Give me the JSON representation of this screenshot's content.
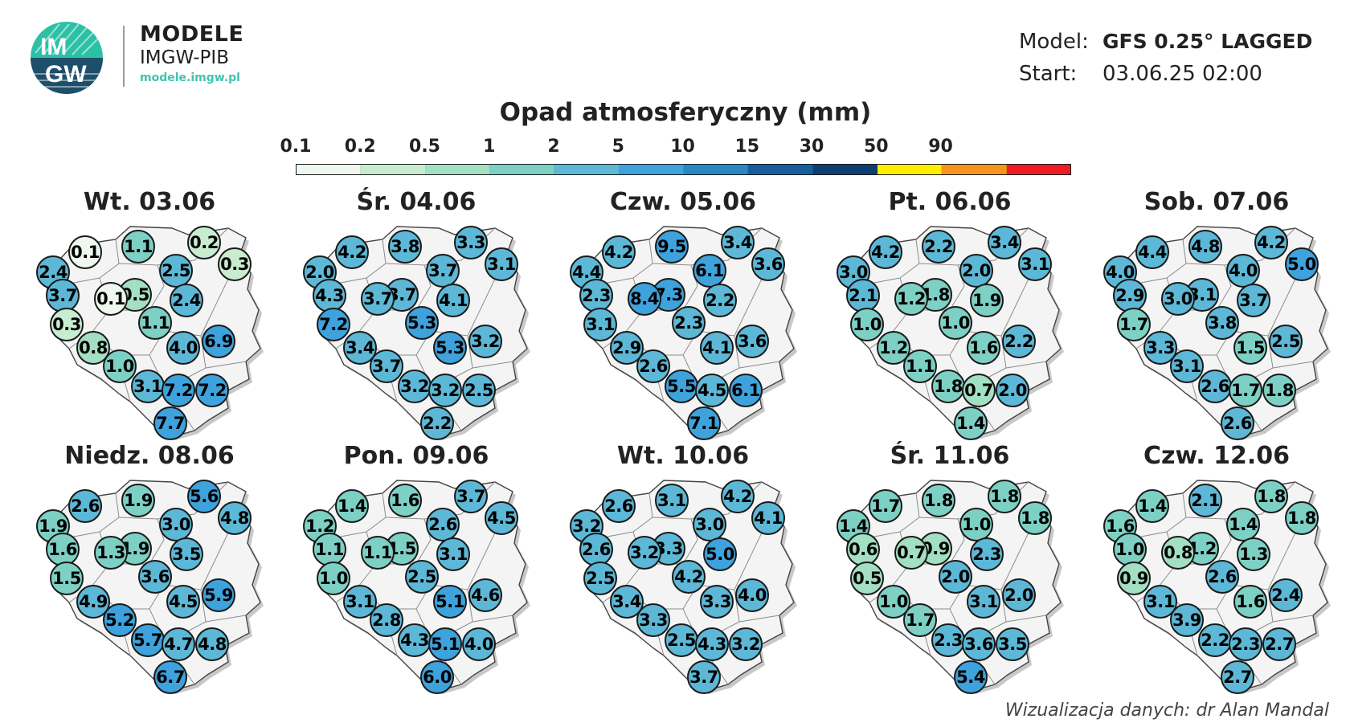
{
  "header": {
    "logo_text_top": "IM",
    "logo_text_bottom": "GW",
    "brand_title": "MODELE",
    "brand_sub": "IMGW-PIB",
    "brand_url": "modele.imgw.pl",
    "model_key": "Model:",
    "model_value": "GFS 0.25° LAGGED",
    "start_key": "Start:",
    "start_value": "03.06.25  02:00"
  },
  "title": "Opad atmosferyczny (mm)",
  "legend": {
    "labels": [
      "0.1",
      "0.2",
      "0.5",
      "1",
      "2",
      "5",
      "10",
      "15",
      "30",
      "50",
      "90"
    ],
    "colors": [
      "#eef8ee",
      "#c8ecd0",
      "#a3dfc2",
      "#7dd0c4",
      "#5cb8d6",
      "#3ea2dc",
      "#2b86c6",
      "#155f9e",
      "#0e3f73",
      "#ffee00",
      "#f7941d",
      "#ee1b24"
    ]
  },
  "days": [
    {
      "title": "Wt. 03.06",
      "values": [
        "0.1",
        "1.1",
        "0.2",
        "2.4",
        "2.5",
        "0.3",
        "3.7",
        "0.5",
        "0.1",
        "2.4",
        "0.3",
        "1.1",
        "0.8",
        "4.0",
        "6.9",
        "1.0",
        "3.1",
        "7.2",
        "7.2",
        "7.7"
      ]
    },
    {
      "title": "Śr. 04.06",
      "values": [
        "4.2",
        "3.8",
        "3.3",
        "2.0",
        "3.7",
        "3.1",
        "4.3",
        "3.7",
        "3.7",
        "4.1",
        "7.2",
        "5.3",
        "3.4",
        "5.3",
        "3.2",
        "3.7",
        "3.2",
        "3.2",
        "2.5",
        "2.2"
      ]
    },
    {
      "title": "Czw. 05.06",
      "values": [
        "4.2",
        "9.5",
        "3.4",
        "4.4",
        "6.1",
        "3.6",
        "2.3",
        "7.3",
        "8.4",
        "2.2",
        "3.1",
        "2.3",
        "2.9",
        "4.1",
        "3.6",
        "2.6",
        "5.5",
        "4.5",
        "6.1",
        "7.1"
      ]
    },
    {
      "title": "Pt. 06.06",
      "values": [
        "4.2",
        "2.2",
        "3.4",
        "3.0",
        "2.0",
        "3.1",
        "2.1",
        "1.8",
        "1.2",
        "1.9",
        "1.0",
        "1.0",
        "1.2",
        "1.6",
        "2.2",
        "1.1",
        "1.8",
        "0.7",
        "2.0",
        "1.4"
      ]
    },
    {
      "title": "Sob. 07.06",
      "values": [
        "4.4",
        "4.8",
        "4.2",
        "4.0",
        "4.0",
        "5.0",
        "2.9",
        "3.1",
        "3.0",
        "3.7",
        "1.7",
        "3.8",
        "3.3",
        "1.5",
        "2.5",
        "3.1",
        "2.6",
        "1.7",
        "1.8",
        "2.6"
      ]
    },
    {
      "title": "Niedz. 08.06",
      "values": [
        "2.6",
        "1.9",
        "5.6",
        "1.9",
        "3.0",
        "4.8",
        "1.6",
        "1.9",
        "1.3",
        "3.5",
        "1.5",
        "3.6",
        "4.9",
        "4.5",
        "5.9",
        "5.2",
        "5.7",
        "4.7",
        "4.8",
        "6.7"
      ]
    },
    {
      "title": "Pon. 09.06",
      "values": [
        "1.4",
        "1.6",
        "3.7",
        "1.2",
        "2.6",
        "4.5",
        "1.1",
        "1.5",
        "1.1",
        "3.1",
        "1.0",
        "2.5",
        "3.1",
        "5.1",
        "4.6",
        "2.8",
        "4.3",
        "5.1",
        "4.0",
        "6.0"
      ]
    },
    {
      "title": "Wt. 10.06",
      "values": [
        "2.6",
        "3.1",
        "4.2",
        "3.2",
        "3.0",
        "4.1",
        "2.6",
        "3.3",
        "3.2",
        "5.0",
        "2.5",
        "4.2",
        "3.4",
        "3.3",
        "4.0",
        "3.3",
        "2.5",
        "4.3",
        "3.2",
        "3.7"
      ]
    },
    {
      "title": "Śr. 11.06",
      "values": [
        "1.7",
        "1.8",
        "1.8",
        "1.4",
        "1.0",
        "1.8",
        "0.6",
        "0.9",
        "0.7",
        "2.3",
        "0.5",
        "2.0",
        "1.0",
        "3.1",
        "2.0",
        "1.7",
        "2.3",
        "3.6",
        "3.5",
        "5.4"
      ]
    },
    {
      "title": "Czw. 12.06",
      "values": [
        "1.4",
        "2.1",
        "1.8",
        "1.6",
        "1.4",
        "1.8",
        "1.0",
        "1.2",
        "0.8",
        "1.3",
        "0.9",
        "2.6",
        "3.1",
        "1.6",
        "2.4",
        "3.9",
        "2.2",
        "2.3",
        "2.7",
        "2.7"
      ]
    }
  ],
  "credit": "Wizualizacja danych: dr Alan Mandal"
}
